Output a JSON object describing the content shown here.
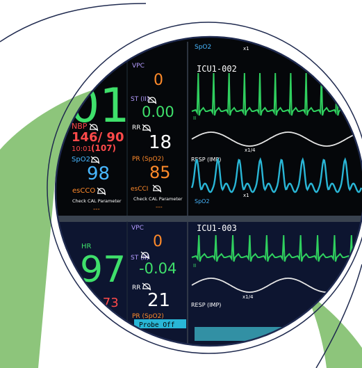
{
  "colors": {
    "background": "#ffffff",
    "leaf_green": "#8dc57b",
    "ring_navy": "#1f2a4f",
    "monitor_black": "#05070a",
    "lower_panel": "#0d1530",
    "ecg_green": "#2fcf5e",
    "resp_white": "#e6e6e6",
    "spo2_cyan": "#29b6d6",
    "nbp_red": "#ff4a4a",
    "esc_orange": "#ff8a2a",
    "label_purple": "#b59cff",
    "value_white": "#ffffff",
    "hr_green": "#3fe06b",
    "spo2_blue": "#48b7ff"
  },
  "monitor": {
    "top": {
      "hr_value_partial": "01",
      "vpc_label": "VPC",
      "vpc_value": "0",
      "st_label": "ST (II)",
      "st_value": "0.00",
      "rr_label": "RR",
      "rr_value": "18",
      "pr_label": "PR (SpO2)",
      "pr_value": "85",
      "nbp_label": "NBP",
      "nbp_value": "146/ 90",
      "nbp_time": "10:01",
      "nbp_mean": "(107)",
      "spo2_label": "SpO2",
      "spo2_value": "98",
      "escco_label": "esCCO",
      "escci_label": "esCCI",
      "check_cal_1": "Check CAL Parameter",
      "check_cal_2": "Check CAL Parameter",
      "dashes": "---",
      "bed_label": "ICU1-002",
      "resp_label": "RESP (IMP)",
      "spo2_wave_label": "SpO2",
      "spo2_top_label": "SpO2",
      "scale_x1": "x1",
      "scale_x1_top": "x1",
      "scale_x1_4": "x1/4",
      "lead_ii": "II"
    },
    "bottom": {
      "hr_label": "HR",
      "hr_value": "97",
      "vpc_label": "VPC",
      "vpc_value": "0",
      "st_label": "ST (II)",
      "st_value": "-0.04",
      "rr_label": "RR",
      "rr_value": "21",
      "nbp_partial": "/ 73",
      "pr_label": "PR (SpO2)",
      "probe_off": "Probe Off",
      "bed_label": "ICU1-003",
      "resp_label": "RESP (IMP)",
      "scale_x1_4": "x1/4",
      "lead_ii": "II",
      "dashes": "---"
    }
  }
}
